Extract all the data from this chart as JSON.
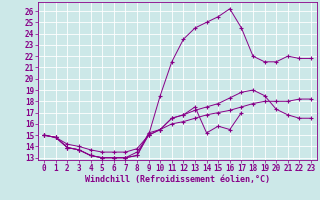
{
  "background_color": "#cce8e8",
  "grid_color": "#ffffff",
  "line_color": "#880088",
  "marker_color": "#880088",
  "xlabel": "Windchill (Refroidissement éolien,°C)",
  "xlabel_fontsize": 6,
  "tick_fontsize": 5.5,
  "xlim": [
    -0.5,
    23.5
  ],
  "ylim": [
    12.8,
    26.8
  ],
  "xticks": [
    0,
    1,
    2,
    3,
    4,
    5,
    6,
    7,
    8,
    9,
    10,
    11,
    12,
    13,
    14,
    15,
    16,
    17,
    18,
    19,
    20,
    21,
    22,
    23
  ],
  "yticks": [
    13,
    14,
    15,
    16,
    17,
    18,
    19,
    20,
    21,
    22,
    23,
    24,
    25,
    26
  ],
  "line1_x": [
    0,
    1,
    2,
    3,
    4,
    5,
    6,
    7,
    8,
    9,
    10,
    11,
    12,
    13,
    14,
    15,
    16,
    17
  ],
  "line1_y": [
    15.0,
    14.8,
    13.9,
    13.7,
    13.2,
    13.0,
    13.0,
    13.0,
    13.2,
    15.2,
    15.5,
    16.5,
    16.8,
    17.5,
    15.2,
    15.8,
    15.5,
    17.0
  ],
  "line2_x": [
    0,
    1,
    2,
    3,
    4,
    5,
    6,
    7,
    8,
    9,
    10,
    11,
    12,
    13,
    14,
    15,
    16,
    17,
    18,
    19,
    20,
    21,
    22,
    23
  ],
  "line2_y": [
    15.0,
    14.8,
    13.9,
    13.7,
    13.2,
    13.0,
    13.0,
    13.0,
    13.5,
    15.0,
    18.5,
    21.5,
    23.5,
    24.5,
    25.0,
    25.5,
    26.2,
    24.5,
    22.0,
    21.5,
    21.5,
    22.0,
    21.8,
    21.8
  ],
  "line3_x": [
    0,
    1,
    2,
    3,
    4,
    5,
    6,
    7,
    8,
    9,
    10,
    11,
    12,
    13,
    14,
    15,
    16,
    17,
    18,
    19,
    20,
    21,
    22,
    23
  ],
  "line3_y": [
    15.0,
    14.8,
    13.9,
    13.7,
    13.2,
    13.0,
    13.0,
    13.0,
    13.2,
    15.0,
    15.5,
    16.5,
    16.8,
    17.2,
    17.5,
    17.8,
    18.3,
    18.8,
    19.0,
    18.5,
    17.3,
    16.8,
    16.5,
    16.5
  ],
  "line4_x": [
    0,
    1,
    2,
    3,
    4,
    5,
    6,
    7,
    8,
    9,
    10,
    11,
    12,
    13,
    14,
    15,
    16,
    17,
    18,
    19,
    20,
    21,
    22,
    23
  ],
  "line4_y": [
    15.0,
    14.8,
    14.2,
    14.0,
    13.7,
    13.5,
    13.5,
    13.5,
    13.8,
    15.0,
    15.5,
    16.0,
    16.2,
    16.5,
    16.8,
    17.0,
    17.2,
    17.5,
    17.8,
    18.0,
    18.0,
    18.0,
    18.2,
    18.2
  ]
}
